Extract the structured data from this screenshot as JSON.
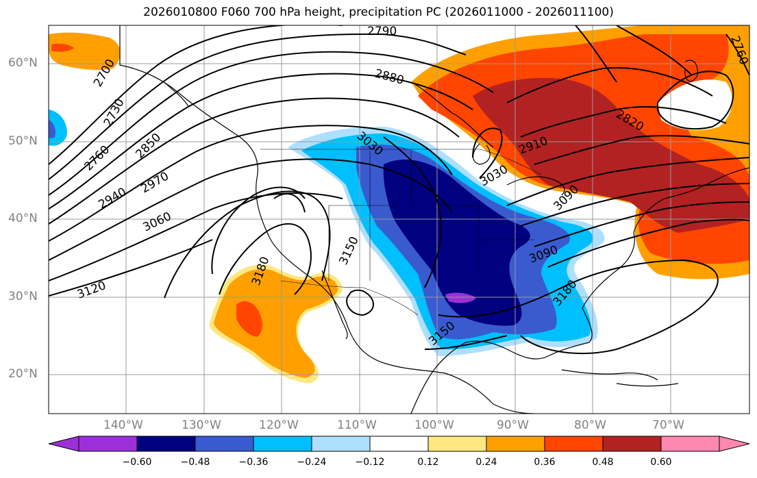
{
  "title": "2026010800 F060 700 hPa height, precipitation PC (2026011000 - 2026011100)",
  "latitude_labels": [
    "60°N",
    "50°N",
    "40°N",
    "30°N",
    "20°N"
  ],
  "longitude_labels": [
    "140°W",
    "130°W",
    "120°W",
    "110°W",
    "100°W",
    "90°W",
    "80°W",
    "70°W"
  ],
  "colorbar": {
    "tick_labels": [
      "−0.60",
      "−0.48",
      "−0.36",
      "−0.24",
      "−0.12",
      "0.12",
      "0.24",
      "0.36",
      "0.48",
      "0.60"
    ],
    "colors": [
      "#9b30d9",
      "#000080",
      "#3a5bd0",
      "#00bfff",
      "#afdfff",
      "#ffffff",
      "#ffe880",
      "#ffa000",
      "#ff4500",
      "#b22222",
      "#ff88b0"
    ]
  },
  "height_contour_labels": [
    "2700",
    "2730",
    "2760",
    "2790",
    "2820",
    "2850",
    "2880",
    "2910",
    "2940",
    "2970",
    "3030",
    "3060",
    "3090",
    "3120",
    "3150",
    "3180",
    "2760",
    "2880",
    "3090",
    "3150",
    "3180",
    "3150",
    "3180",
    "3030",
    "2880",
    "2760"
  ]
}
